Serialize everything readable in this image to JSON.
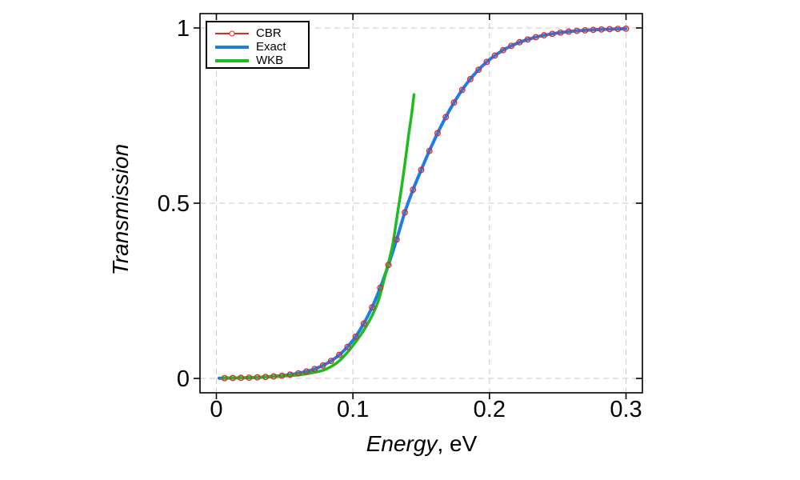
{
  "chart_data": {
    "type": "line",
    "title": "",
    "xlabel": {
      "italic": "Energy",
      "rest": ", eV"
    },
    "ylabel": "Transmission",
    "xlim": [
      -0.012,
      0.312
    ],
    "ylim": [
      -0.041,
      1.041
    ],
    "x_ticks": {
      "values": [
        0,
        0.1,
        0.2,
        0.3
      ],
      "labels": [
        "0",
        "0.1",
        "0.2",
        "0.3"
      ]
    },
    "y_ticks": {
      "values": [
        0,
        0.5,
        1
      ],
      "labels": [
        "0",
        "0.5",
        "1"
      ]
    },
    "grid": {
      "show": true,
      "style": "dashed",
      "color": "#c9c9c9"
    },
    "legend": {
      "position": "top-left",
      "border_color": "#000000",
      "background": "#ffffff"
    },
    "series": [
      {
        "name": "CBR",
        "color": "#e8251e",
        "line_width": 1.3,
        "marker": "open-circle",
        "marker_size": 3.3,
        "x": [
          0.006,
          0.012,
          0.018,
          0.024,
          0.03,
          0.036,
          0.042,
          0.048,
          0.054,
          0.06,
          0.066,
          0.072,
          0.078,
          0.084,
          0.09,
          0.096,
          0.102,
          0.108,
          0.114,
          0.12,
          0.126,
          0.132,
          0.138,
          0.144,
          0.15,
          0.156,
          0.162,
          0.168,
          0.174,
          0.18,
          0.186,
          0.192,
          0.198,
          0.204,
          0.21,
          0.216,
          0.222,
          0.228,
          0.234,
          0.24,
          0.246,
          0.252,
          0.258,
          0.264,
          0.27,
          0.276,
          0.282,
          0.288,
          0.294,
          0.3
        ],
        "y": [
          0.0009,
          0.0012,
          0.0016,
          0.0022,
          0.0031,
          0.0042,
          0.0057,
          0.0078,
          0.0107,
          0.0146,
          0.0199,
          0.0271,
          0.0369,
          0.0499,
          0.0672,
          0.0898,
          0.1192,
          0.1566,
          0.2029,
          0.2587,
          0.3237,
          0.3963,
          0.4737,
          0.5384,
          0.595,
          0.6492,
          0.6998,
          0.7459,
          0.7871,
          0.8232,
          0.8543,
          0.8808,
          0.903,
          0.9214,
          0.9366,
          0.949,
          0.9591,
          0.9672,
          0.9738,
          0.9791,
          0.9833,
          0.9867,
          0.9894,
          0.9916,
          0.9933,
          0.9947,
          0.9958,
          0.9966,
          0.9973,
          0.9979
        ]
      },
      {
        "name": "Exact",
        "color": "#1e7de6",
        "line_width": 4,
        "marker": "none",
        "marker_size": 0,
        "x": [
          0.002,
          0.006,
          0.012,
          0.018,
          0.024,
          0.03,
          0.036,
          0.042,
          0.048,
          0.054,
          0.06,
          0.066,
          0.072,
          0.078,
          0.084,
          0.09,
          0.096,
          0.102,
          0.108,
          0.114,
          0.12,
          0.126,
          0.132,
          0.138,
          0.144,
          0.15,
          0.156,
          0.162,
          0.168,
          0.174,
          0.18,
          0.186,
          0.192,
          0.198,
          0.204,
          0.21,
          0.216,
          0.222,
          0.228,
          0.234,
          0.24,
          0.246,
          0.252,
          0.258,
          0.264,
          0.27,
          0.276,
          0.282,
          0.288,
          0.294,
          0.3
        ],
        "y": [
          0.0007,
          0.0009,
          0.0012,
          0.0016,
          0.0022,
          0.0031,
          0.0042,
          0.0057,
          0.0078,
          0.0107,
          0.0146,
          0.0199,
          0.0271,
          0.0369,
          0.0499,
          0.0672,
          0.0898,
          0.1192,
          0.1566,
          0.2029,
          0.2587,
          0.3237,
          0.3963,
          0.4737,
          0.5384,
          0.595,
          0.6492,
          0.6998,
          0.7459,
          0.7871,
          0.8232,
          0.8543,
          0.8808,
          0.903,
          0.9214,
          0.9366,
          0.949,
          0.9591,
          0.9672,
          0.9738,
          0.9791,
          0.9833,
          0.9867,
          0.9894,
          0.9916,
          0.9933,
          0.9947,
          0.9958,
          0.9966,
          0.9973,
          0.9979
        ]
      },
      {
        "name": "WKB",
        "color": "#1ebc1e",
        "line_width": 3.5,
        "marker": "none",
        "marker_size": 0,
        "x": [
          0.004,
          0.02,
          0.04,
          0.06,
          0.07,
          0.08,
          0.09,
          0.1,
          0.11,
          0.118,
          0.124,
          0.129,
          0.133,
          0.136,
          0.139,
          0.141,
          0.143,
          0.1447
        ],
        "y": [
          0.001,
          0.002,
          0.005,
          0.01,
          0.016,
          0.026,
          0.05,
          0.094,
          0.15,
          0.215,
          0.3,
          0.38,
          0.48,
          0.555,
          0.64,
          0.7,
          0.755,
          0.81
        ]
      }
    ]
  }
}
